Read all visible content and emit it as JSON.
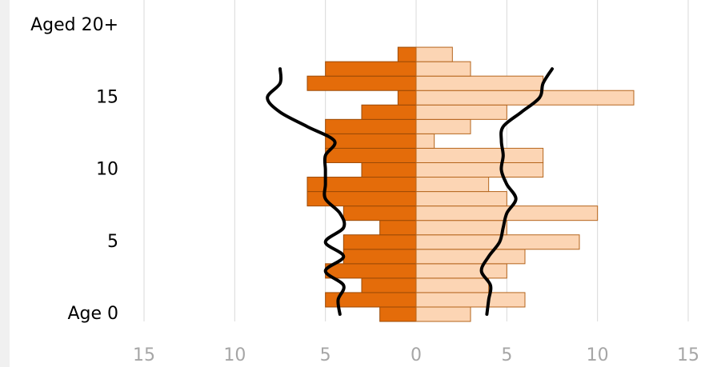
{
  "chart_data": {
    "type": "bar",
    "orientation": "horizontal",
    "categories": [
      "Age 0",
      null,
      null,
      null,
      null,
      "5",
      null,
      null,
      null,
      null,
      "10",
      null,
      null,
      null,
      null,
      "15",
      null,
      null,
      null,
      null,
      "Aged 20+"
    ],
    "series": [
      {
        "type": "bar",
        "color": "#e46c0a",
        "border": "#9c4a06",
        "values": [
          -2,
          -5,
          -3,
          -5,
          -4,
          -4,
          -2,
          -4,
          -6,
          -6,
          -3,
          -5,
          -5,
          -5,
          -3,
          -1,
          -6,
          -5,
          -1,
          null,
          null
        ]
      },
      {
        "type": "bar",
        "color": "#fcd5b4",
        "border": "#b5651d",
        "values": [
          3,
          6,
          4,
          5,
          6,
          9,
          5,
          10,
          5,
          4,
          7,
          7,
          1,
          3,
          5,
          12,
          7,
          3,
          2,
          null,
          null
        ]
      },
      {
        "type": "line",
        "color": "#000000",
        "values": [
          -4.2,
          -4.3,
          -4.0,
          -5.0,
          -4.0,
          -5.0,
          -4.0,
          -4.2,
          -5.0,
          -5.0,
          -5.0,
          -5.0,
          -4.5,
          -6.0,
          -7.5,
          -8.2,
          -7.5,
          -7.5,
          null,
          null,
          null
        ]
      },
      {
        "type": "line",
        "color": "#000000",
        "values": [
          3.9,
          4.0,
          4.1,
          3.6,
          4.0,
          4.6,
          4.8,
          5.0,
          5.5,
          5.0,
          4.7,
          4.8,
          4.7,
          4.8,
          5.8,
          6.8,
          7.0,
          7.5,
          null,
          null,
          null
        ]
      }
    ],
    "xlim": [
      -15,
      15
    ],
    "xticks": [
      {
        "value": -15,
        "label": "15"
      },
      {
        "value": -10,
        "label": "10"
      },
      {
        "value": -5,
        "label": "5"
      },
      0,
      5,
      10,
      15
    ],
    "grid": true
  }
}
